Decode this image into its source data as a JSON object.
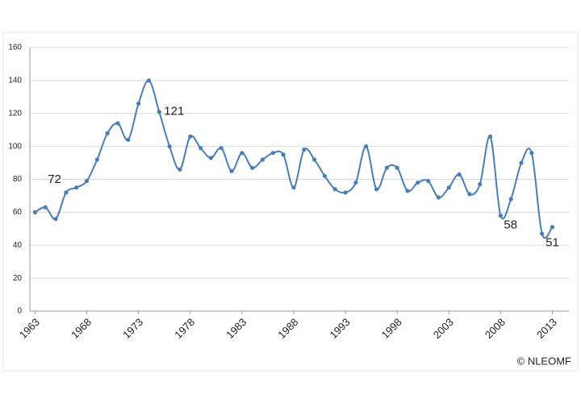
{
  "chart_data": {
    "type": "line",
    "x": [
      1963,
      1964,
      1965,
      1966,
      1967,
      1968,
      1969,
      1970,
      1971,
      1972,
      1973,
      1974,
      1975,
      1976,
      1977,
      1978,
      1979,
      1980,
      1981,
      1982,
      1983,
      1984,
      1985,
      1986,
      1987,
      1988,
      1989,
      1990,
      1991,
      1992,
      1993,
      1994,
      1995,
      1996,
      1997,
      1998,
      1999,
      2000,
      2001,
      2002,
      2003,
      2004,
      2005,
      2006,
      2007,
      2008,
      2009,
      2010,
      2011,
      2012,
      2013
    ],
    "series": [
      {
        "color": "#4a7ebb",
        "values": [
          60,
          63,
          56,
          72,
          75,
          79,
          92,
          108,
          114,
          104,
          126,
          140,
          121,
          100,
          86,
          106,
          99,
          93,
          99,
          85,
          96,
          87,
          92,
          96,
          95,
          75,
          98,
          92,
          82,
          74,
          72,
          78,
          100,
          74,
          87,
          87,
          73,
          78,
          79,
          69,
          75,
          83,
          71,
          77,
          106,
          58,
          68,
          90,
          96,
          47,
          51
        ],
        "value_labels": [
          null,
          null,
          null,
          "72",
          null,
          null,
          null,
          null,
          null,
          null,
          null,
          null,
          "121",
          null,
          null,
          null,
          null,
          null,
          null,
          null,
          null,
          null,
          null,
          null,
          null,
          null,
          null,
          null,
          null,
          null,
          null,
          null,
          null,
          null,
          null,
          null,
          null,
          null,
          null,
          null,
          null,
          null,
          null,
          null,
          null,
          "58",
          null,
          null,
          null,
          null,
          "51"
        ]
      }
    ],
    "xlim": [
      1962.5,
      2014.6
    ],
    "xticks": [
      1963,
      1968,
      1973,
      1978,
      1983,
      1988,
      1993,
      1998,
      2003,
      2008,
      2013
    ],
    "ylim": [
      0,
      160
    ],
    "yticks": [
      0,
      20,
      40,
      60,
      80,
      100,
      120,
      140,
      160
    ],
    "grid": true,
    "credit": "© NLEOMF"
  }
}
